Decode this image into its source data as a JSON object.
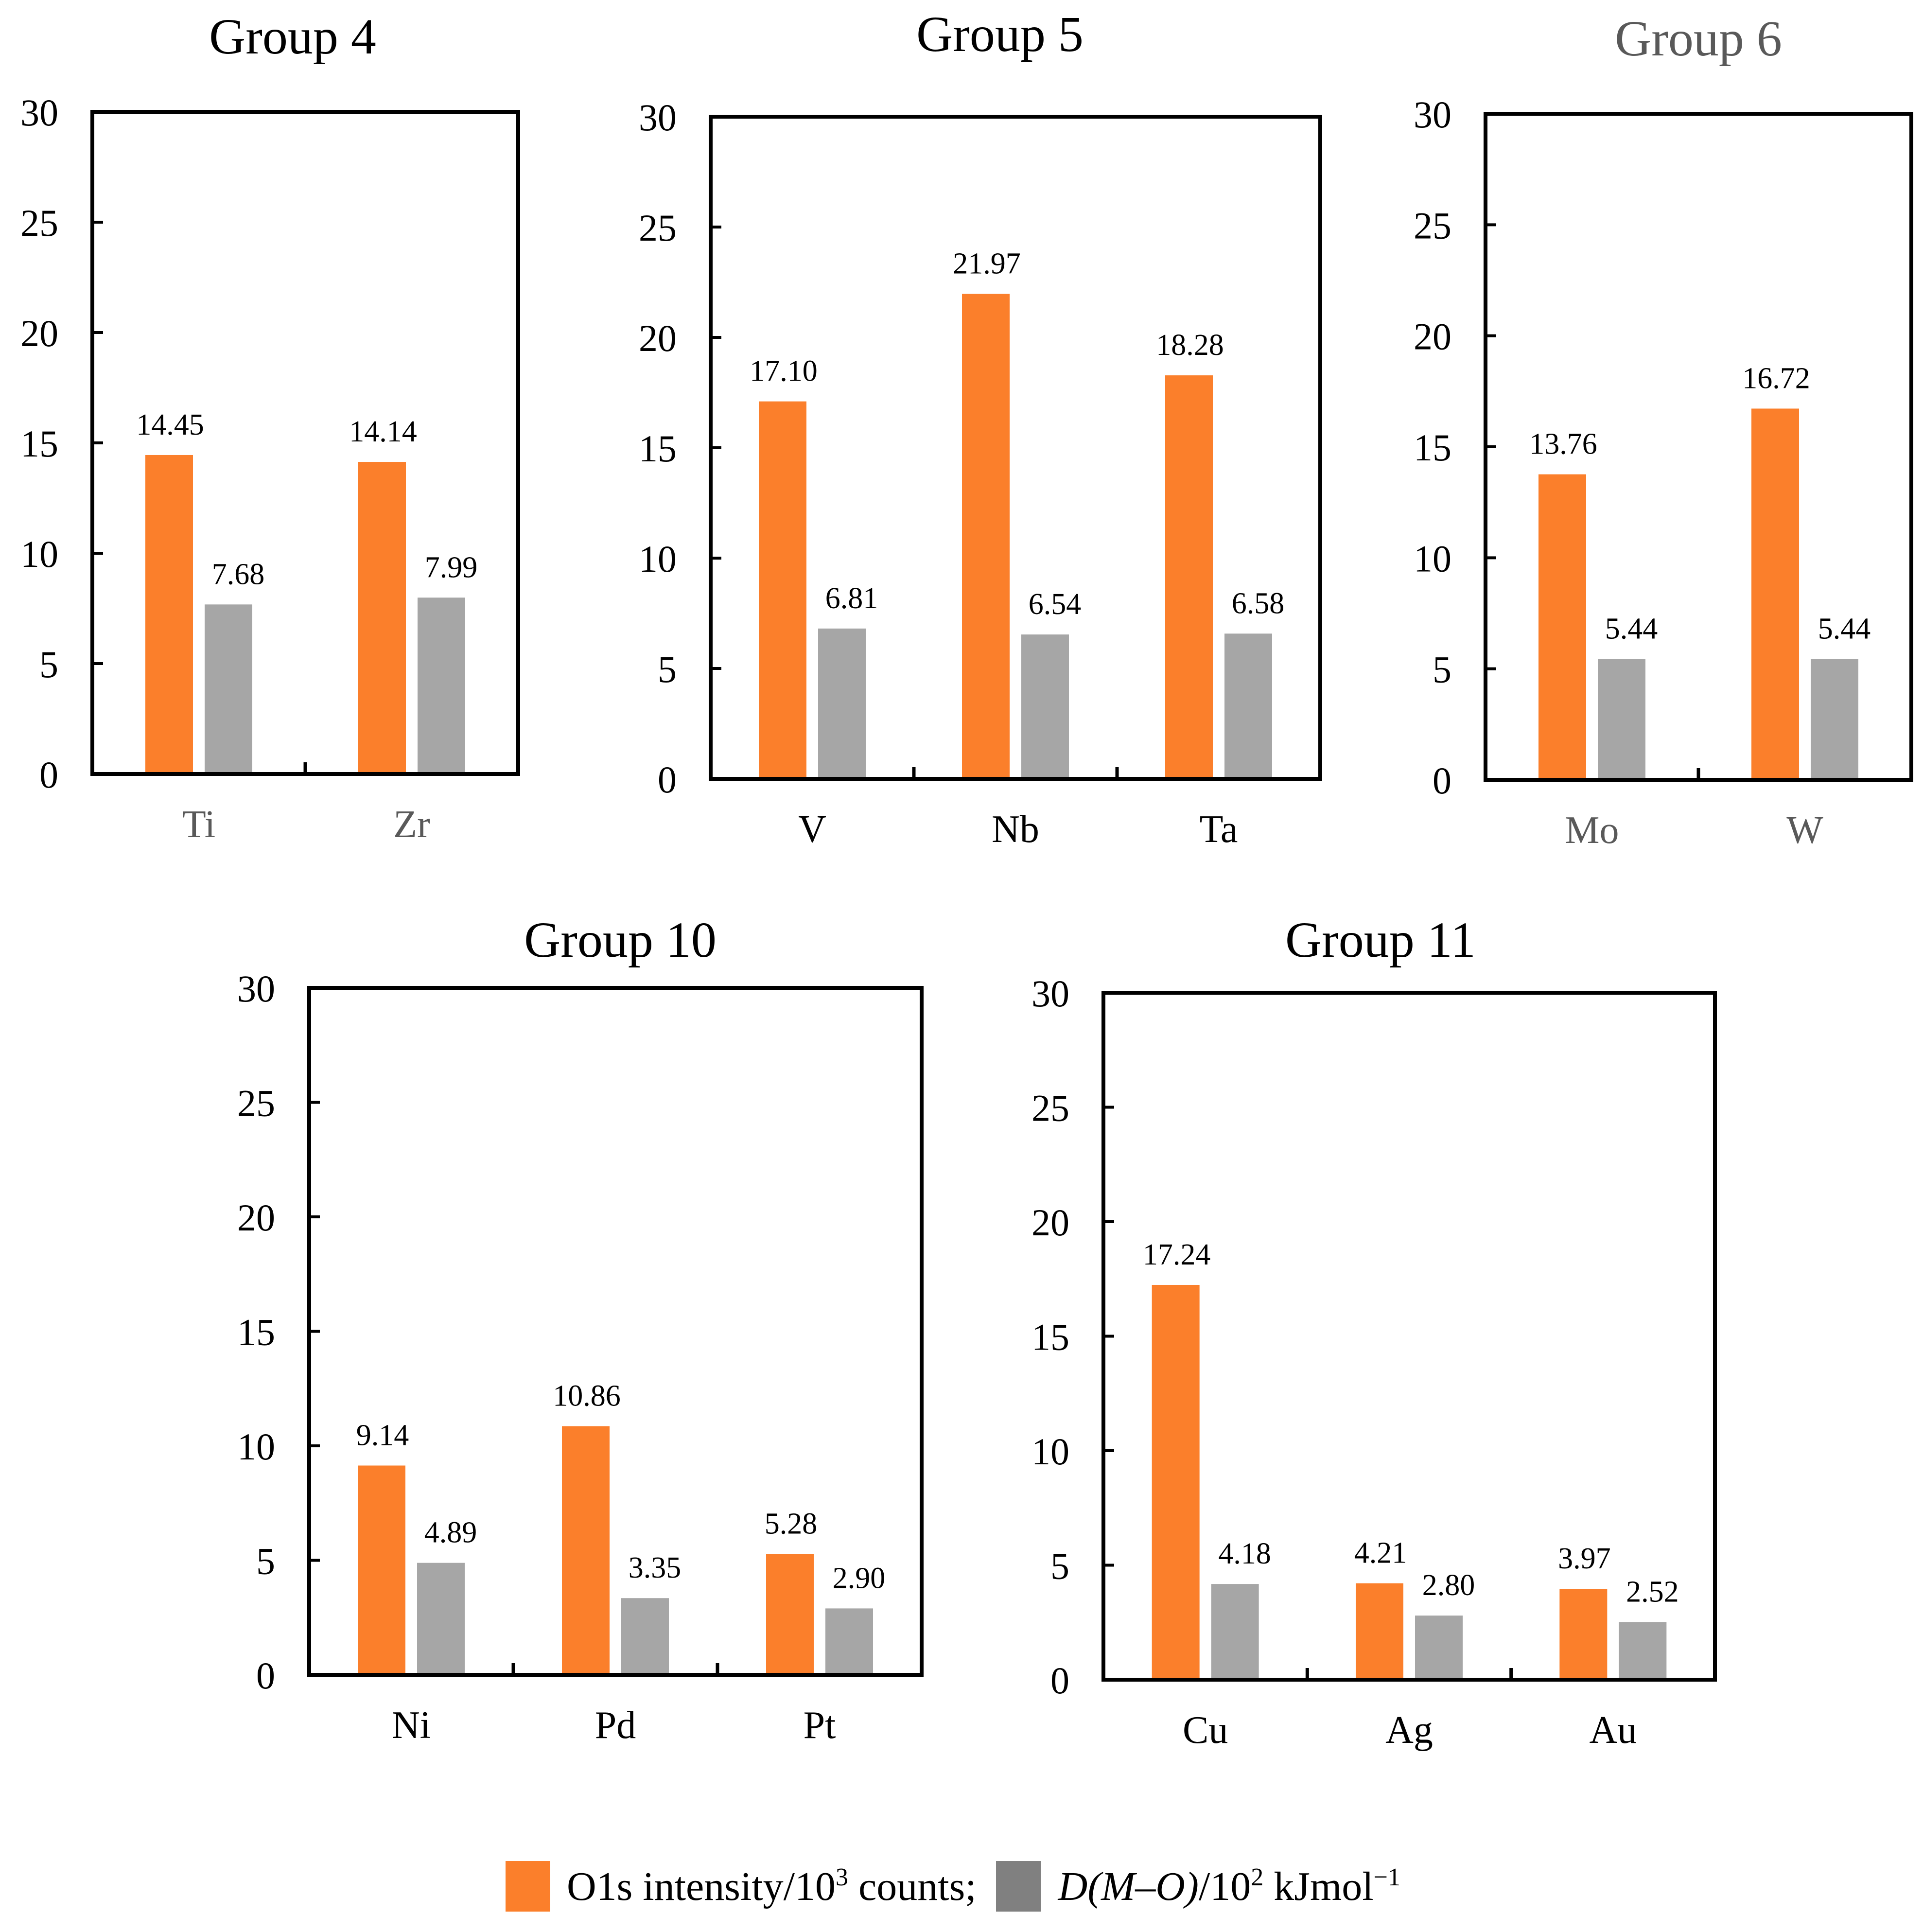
{
  "colors": {
    "orange": "#fb7f2b",
    "gray": "#a6a6a6",
    "legend_gray": "#808080"
  },
  "chart_data": [
    {
      "type": "bar",
      "title": "Group 4",
      "title_color": "#000000",
      "category_color": "#595959",
      "categories": [
        "Ti",
        "Zr"
      ],
      "ylim": [
        0,
        30
      ],
      "yticks": [
        0,
        5,
        10,
        15,
        20,
        25,
        30
      ],
      "series": [
        {
          "name": "O1s intensity/10^3 counts",
          "values": [
            14.45,
            14.14
          ],
          "labels": [
            "14.45",
            "14.14"
          ]
        },
        {
          "name": "D(M-O)/10^2 kJmol^-1",
          "values": [
            7.68,
            7.99
          ],
          "labels": [
            "7.68",
            "7.99"
          ]
        }
      ]
    },
    {
      "type": "bar",
      "title": "Group 5",
      "title_color": "#000000",
      "category_color": "#000000",
      "categories": [
        "V",
        "Nb",
        "Ta"
      ],
      "ylim": [
        0,
        30
      ],
      "yticks": [
        0,
        5,
        10,
        15,
        20,
        25,
        30
      ],
      "series": [
        {
          "name": "O1s intensity/10^3 counts",
          "values": [
            17.1,
            21.97,
            18.28
          ],
          "labels": [
            "17.10",
            "21.97",
            "18.28"
          ]
        },
        {
          "name": "D(M-O)/10^2 kJmol^-1",
          "values": [
            6.81,
            6.54,
            6.58
          ],
          "labels": [
            "6.81",
            "6.54",
            "6.58"
          ]
        }
      ]
    },
    {
      "type": "bar",
      "title": "Group 6",
      "title_color": "#595959",
      "category_color": "#595959",
      "categories": [
        "Mo",
        "W"
      ],
      "ylim": [
        0,
        30
      ],
      "yticks": [
        0,
        5,
        10,
        15,
        20,
        25,
        30
      ],
      "series": [
        {
          "name": "O1s intensity/10^3 counts",
          "values": [
            13.76,
            16.72
          ],
          "labels": [
            "13.76",
            "16.72"
          ]
        },
        {
          "name": "D(M-O)/10^2 kJmol^-1",
          "values": [
            5.44,
            5.44
          ],
          "labels": [
            "5.44",
            "5.44"
          ]
        }
      ]
    },
    {
      "type": "bar",
      "title": "Group 10",
      "title_color": "#000000",
      "category_color": "#000000",
      "categories": [
        "Ni",
        "Pd",
        "Pt"
      ],
      "ylim": [
        0,
        30
      ],
      "yticks": [
        0,
        5,
        10,
        15,
        20,
        25,
        30
      ],
      "series": [
        {
          "name": "O1s intensity/10^3 counts",
          "values": [
            9.14,
            10.86,
            5.28
          ],
          "labels": [
            "9.14",
            "10.86",
            "5.28"
          ]
        },
        {
          "name": "D(M-O)/10^2 kJmol^-1",
          "values": [
            4.89,
            3.35,
            2.9
          ],
          "labels": [
            "4.89",
            "3.35",
            "2.90"
          ]
        }
      ]
    },
    {
      "type": "bar",
      "title": "Group 11",
      "title_color": "#000000",
      "category_color": "#000000",
      "categories": [
        "Cu",
        "Ag",
        "Au"
      ],
      "ylim": [
        0,
        30
      ],
      "yticks": [
        0,
        5,
        10,
        15,
        20,
        25,
        30
      ],
      "series": [
        {
          "name": "O1s intensity/10^3 counts",
          "values": [
            17.24,
            4.21,
            3.97
          ],
          "labels": [
            "17.24",
            "4.21",
            "3.97"
          ]
        },
        {
          "name": "D(M-O)/10^2 kJmol^-1",
          "values": [
            4.18,
            2.8,
            2.52
          ],
          "labels": [
            "4.18",
            "2.80",
            "2.52"
          ]
        }
      ]
    }
  ],
  "legend": {
    "series1_text": "O1s intensity/10",
    "series1_exp": "3",
    "series1_tail": " counts;",
    "series2_italic": "D(M–O)",
    "series2_text": "/10",
    "series2_exp": "2",
    "series2_unit": " kJmol",
    "series2_unit_exp": "−1"
  }
}
